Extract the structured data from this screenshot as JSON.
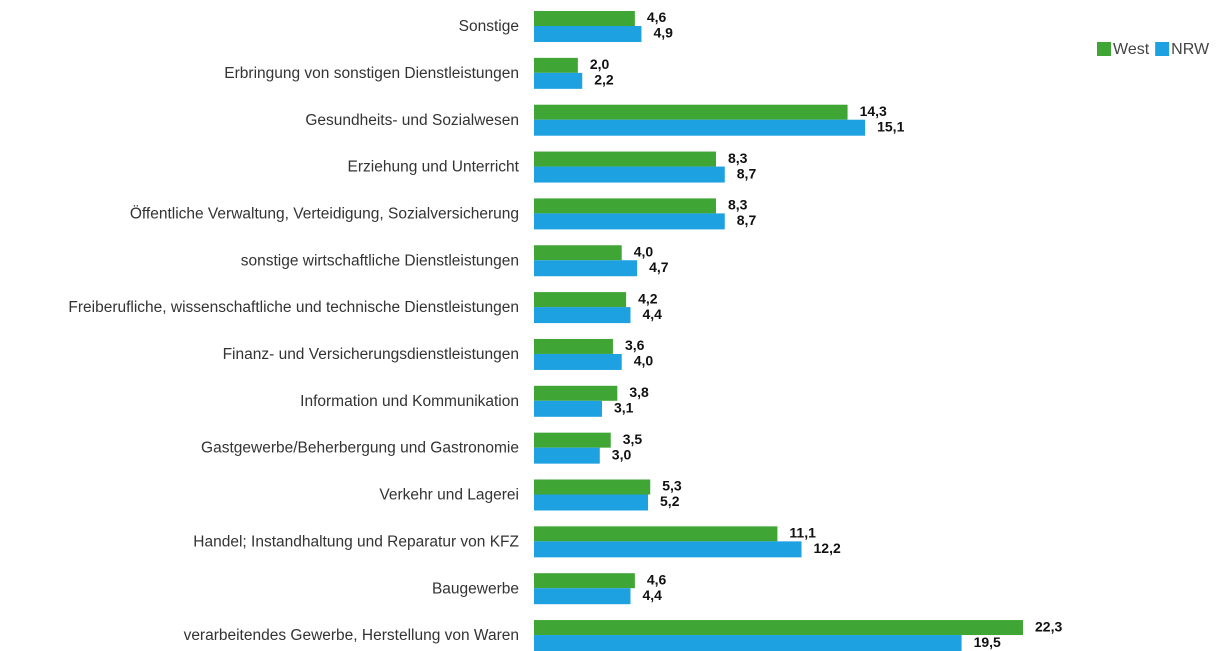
{
  "chart_data": {
    "type": "bar",
    "orientation": "horizontal",
    "categories": [
      "Sonstige",
      "Erbringung von sonstigen Dienstleistungen",
      "Gesundheits- und Sozialwesen",
      "Erziehung und Unterricht",
      "Öffentliche Verwaltung, Verteidigung, Sozialversicherung",
      "sonstige wirtschaftliche Dienstleistungen",
      "Freiberufliche, wissenschaftliche und technische Dienstleistungen",
      "Finanz- und Versicherungsdienstleistungen",
      "Information und Kommunikation",
      "Gastgewerbe/Beherbergung und Gastronomie",
      "Verkehr und Lagerei",
      "Handel; Instandhaltung und Reparatur von KFZ",
      "Baugewerbe",
      "verarbeitendes Gewerbe, Herstellung von Waren"
    ],
    "series": [
      {
        "name": "West",
        "color": "#3fa535",
        "values": [
          4.6,
          2.0,
          14.3,
          8.3,
          8.3,
          4.0,
          4.2,
          3.6,
          3.8,
          3.5,
          5.3,
          11.1,
          4.6,
          22.3
        ],
        "value_labels": [
          "4,6",
          "2,0",
          "14,3",
          "8,3",
          "8,3",
          "4,0",
          "4,2",
          "3,6",
          "3,8",
          "3,5",
          "5,3",
          "11,1",
          "4,6",
          "22,3"
        ]
      },
      {
        "name": "NRW",
        "color": "#1ea1e0",
        "values": [
          4.9,
          2.2,
          15.1,
          8.7,
          8.7,
          4.7,
          4.4,
          4.0,
          3.1,
          3.0,
          5.2,
          12.2,
          4.4,
          19.5
        ],
        "value_labels": [
          "4,9",
          "2,2",
          "15,1",
          "8,7",
          "8,7",
          "4,7",
          "4,4",
          "4,0",
          "3,1",
          "3,0",
          "5,2",
          "12,2",
          "4,4",
          "19,5"
        ]
      }
    ],
    "legend": "top-right"
  }
}
